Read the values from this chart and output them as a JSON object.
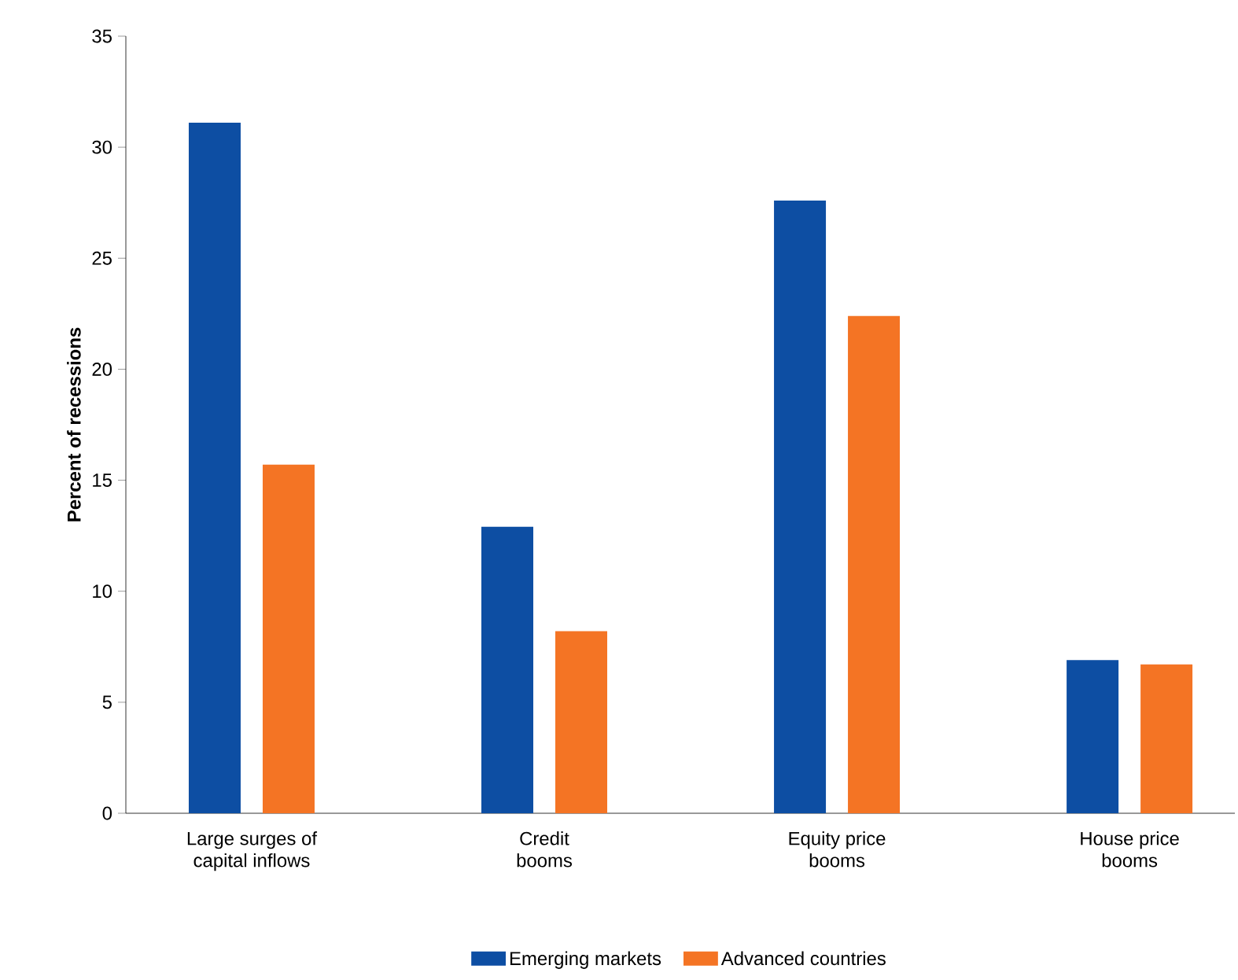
{
  "chart_data": {
    "type": "bar",
    "ylabel": "Percent of recessions",
    "categories": [
      "Large surges of capital inflows",
      "Credit booms",
      "Equity price booms",
      "House price booms"
    ],
    "series": [
      {
        "name": "Emerging markets",
        "color": "#0d4ea3",
        "values": [
          31.1,
          12.9,
          27.6,
          6.9
        ]
      },
      {
        "name": "Advanced countries",
        "color": "#f47424",
        "values": [
          15.7,
          8.2,
          22.4,
          6.7
        ]
      }
    ],
    "ylim": [
      0,
      35
    ],
    "yticks": [
      0,
      5,
      10,
      15,
      20,
      25,
      30,
      35
    ],
    "grid": false,
    "legend": "bottom"
  }
}
